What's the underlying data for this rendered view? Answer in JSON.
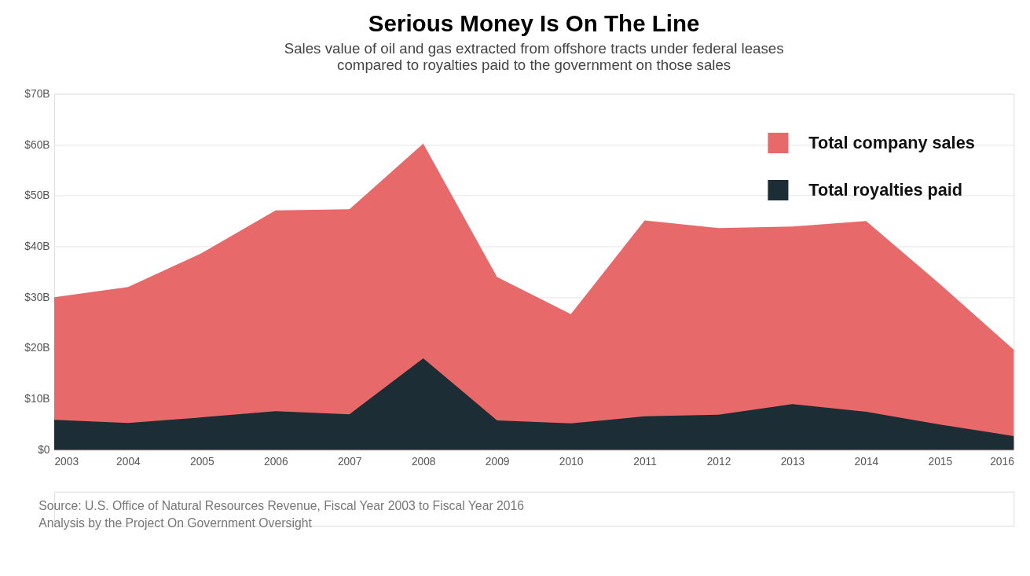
{
  "chart_data": {
    "type": "area",
    "title": "Serious Money Is On The Line",
    "subtitle": [
      "Sales value of oil and gas extracted from offshore tracts under federal leases",
      "compared to royalties paid to the government on those sales"
    ],
    "x": [
      2003,
      2004,
      2005,
      2006,
      2007,
      2008,
      2009,
      2010,
      2011,
      2012,
      2013,
      2014,
      2015,
      2016
    ],
    "series": [
      {
        "name": "Total company sales",
        "color": "#e8696a",
        "values": [
          30,
          32,
          38.7,
          47.1,
          47.3,
          60.2,
          34,
          26.7,
          45.1,
          43.6,
          43.9,
          45,
          32.6,
          19.7
        ]
      },
      {
        "name": "Total royalties paid",
        "color": "#1d2d35",
        "values": [
          5.9,
          5.3,
          6.4,
          7.6,
          7,
          18,
          5.8,
          5.2,
          6.6,
          6.9,
          9,
          7.5,
          5,
          2.7
        ]
      }
    ],
    "xlim": [
      2003,
      2016
    ],
    "xticks": [
      2003,
      2004,
      2005,
      2006,
      2007,
      2008,
      2009,
      2010,
      2011,
      2012,
      2013,
      2014,
      2015,
      2016
    ],
    "ylim": [
      0,
      70
    ],
    "yticks": [
      {
        "value": 0,
        "label": "$0"
      },
      {
        "value": 10,
        "label": "$10B"
      },
      {
        "value": 20,
        "label": "$20B"
      },
      {
        "value": 30,
        "label": "$30B"
      },
      {
        "value": 40,
        "label": "$40B"
      },
      {
        "value": 50,
        "label": "$50B"
      },
      {
        "value": 60,
        "label": "$60B"
      },
      {
        "value": 70,
        "label": "$70B"
      }
    ],
    "grid": "y",
    "legend": "top right",
    "annotations": [
      "Source: U.S. Office of Natural Resources Revenue, Fiscal Year 2003 to Fiscal Year 2016",
      "Analysis by the Project On Government Oversight"
    ]
  }
}
